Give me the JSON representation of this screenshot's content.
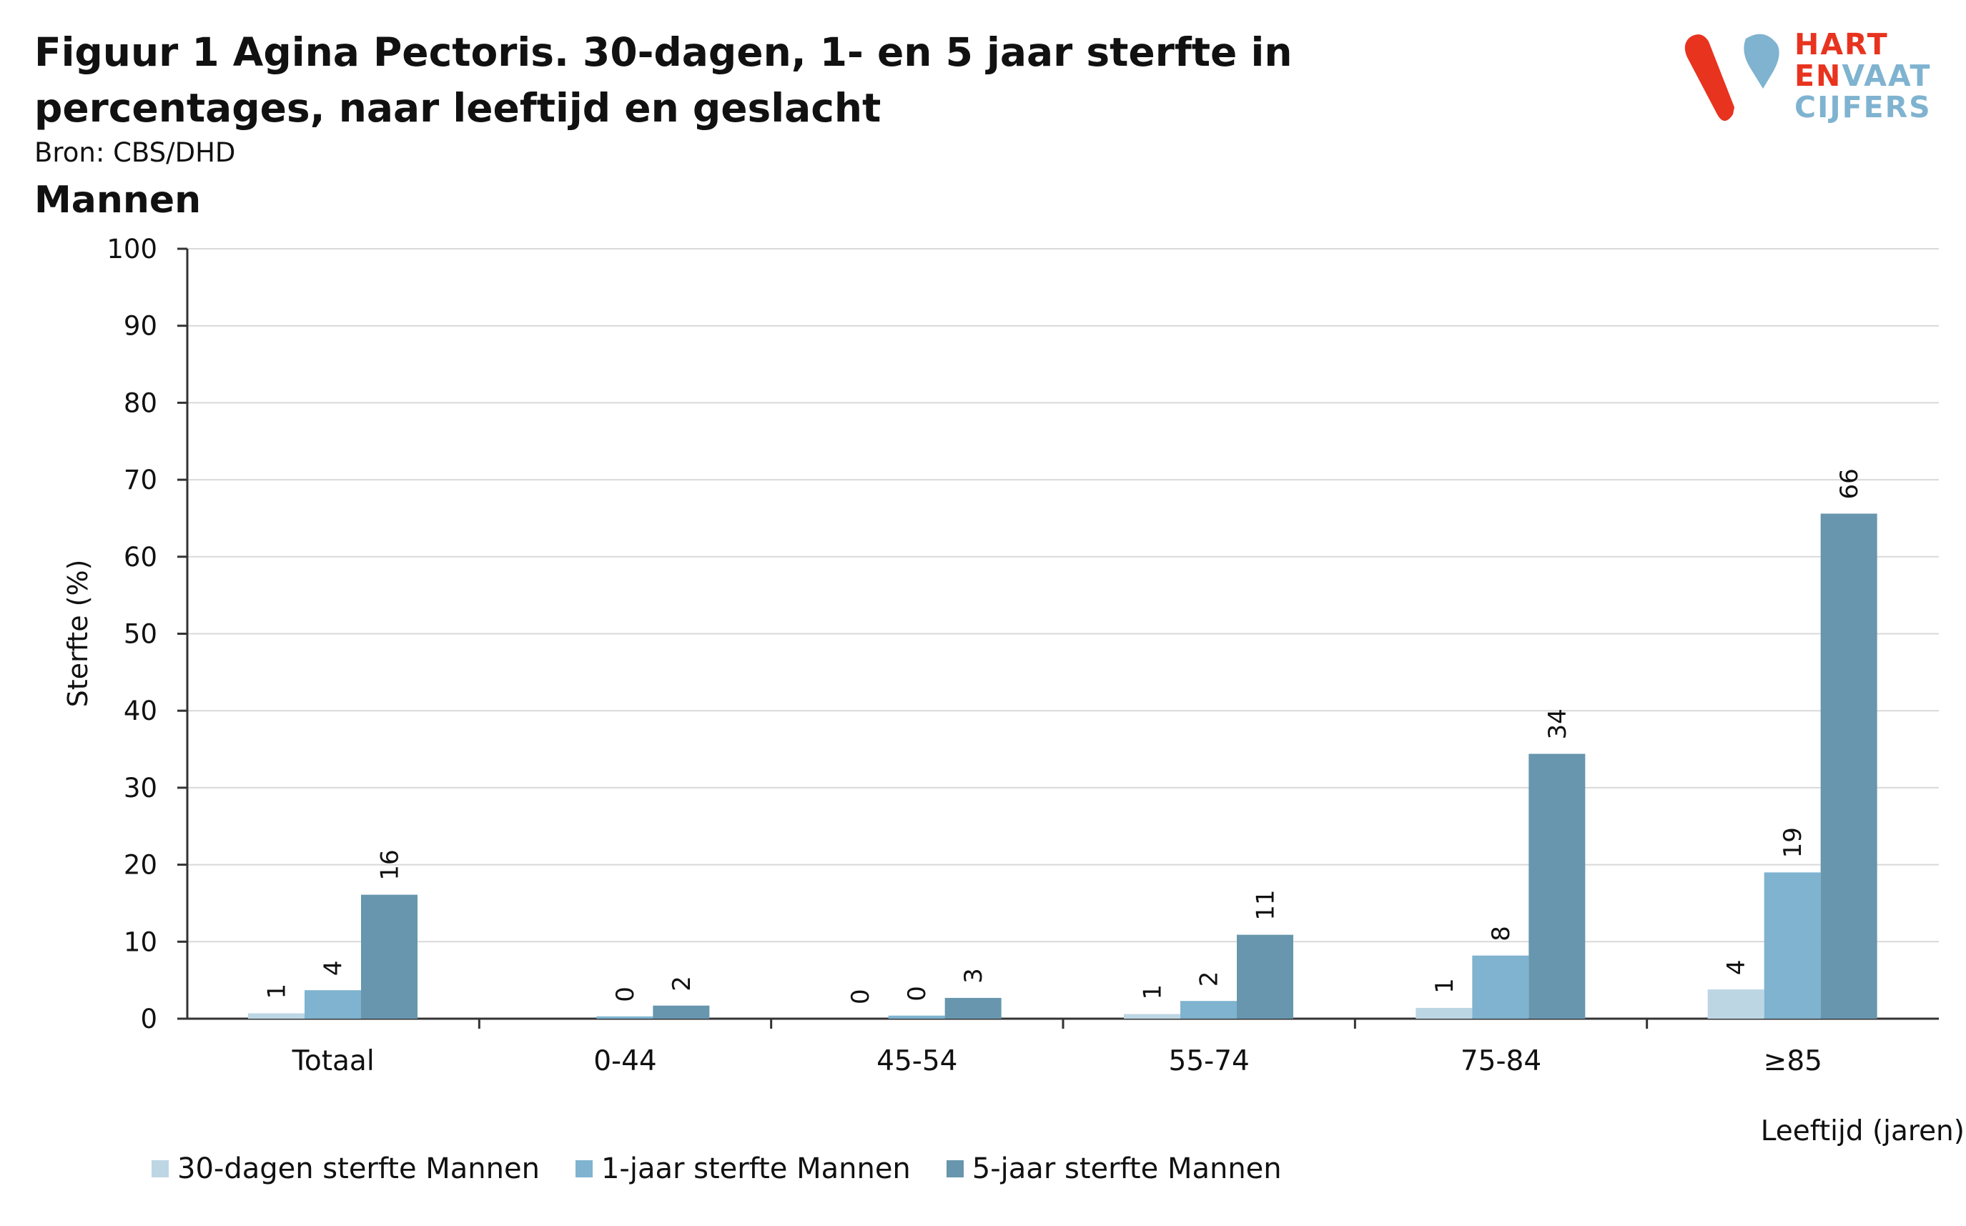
{
  "title": "Figuur 1 Agina Pectoris. 30-dagen, 1- en 5 jaar sterfte in percentages, naar leeftijd en geslacht",
  "source": "Bron: CBS/DHD",
  "subtitle": "Mannen",
  "logo": {
    "line1": "HART",
    "line2a": "EN",
    "line2b": "VAAT",
    "line3": "CIJFERS",
    "colors": {
      "red": "#e8331f",
      "blue": "#7fb3d0"
    }
  },
  "chart_data": {
    "type": "bar",
    "title": "Mannen",
    "xlabel": "Leeftijd (jaren)",
    "ylabel": "Sterfte (%)",
    "ylim": [
      0,
      100
    ],
    "yticks": [
      0,
      10,
      20,
      30,
      40,
      50,
      60,
      70,
      80,
      90,
      100
    ],
    "grid": true,
    "legend_position": "bottom-left",
    "categories": [
      "Totaal",
      "0-44",
      "45-54",
      "55-74",
      "75-84",
      "≥85"
    ],
    "series": [
      {
        "name": "30-dagen sterfte Mannen",
        "color": "#bdd6e4",
        "values": [
          0.7,
          null,
          0,
          0.6,
          1.4,
          3.8
        ],
        "labels": [
          "1",
          "",
          "0",
          "1",
          "1",
          "4"
        ]
      },
      {
        "name": "1-jaar sterfte Mannen",
        "color": "#7fb3d0",
        "values": [
          3.7,
          0.3,
          0.4,
          2.3,
          8.2,
          19
        ],
        "labels": [
          "4",
          "0",
          "0",
          "2",
          "8",
          "19"
        ]
      },
      {
        "name": "5-jaar sterfte Mannen",
        "color": "#6796ae",
        "values": [
          16.1,
          1.7,
          2.7,
          10.9,
          34.4,
          65.6
        ],
        "labels": [
          "16",
          "2",
          "3",
          "11",
          "34",
          "66"
        ]
      }
    ]
  }
}
